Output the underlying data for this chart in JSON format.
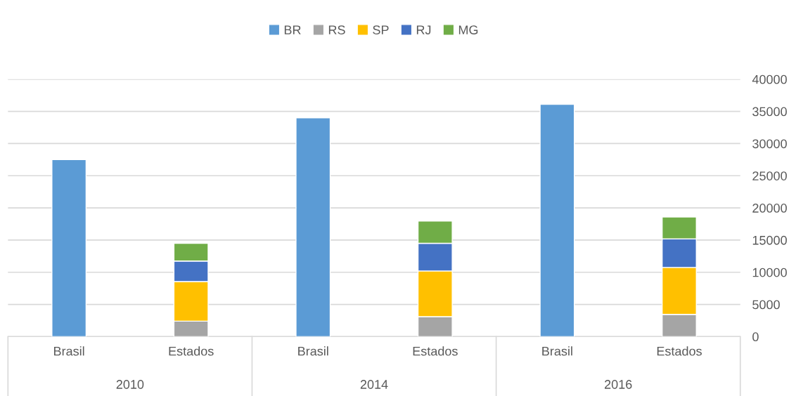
{
  "chart_data": {
    "type": "bar",
    "stacked": true,
    "categories": [
      "Brasil",
      "Estados",
      "Brasil",
      "Estados",
      "Brasil",
      "Estados"
    ],
    "series": [
      {
        "name": "BR",
        "color": "#5b9bd5",
        "values": [
          27500,
          null,
          34000,
          null,
          36100,
          null
        ]
      },
      {
        "name": "RS",
        "color": "#a5a5a5",
        "values": [
          null,
          2400,
          null,
          3100,
          null,
          3450
        ]
      },
      {
        "name": "SP",
        "color": "#ffc000",
        "values": [
          null,
          6150,
          null,
          7100,
          null,
          7300
        ]
      },
      {
        "name": "RJ",
        "color": "#4472c4",
        "values": [
          null,
          3200,
          null,
          4300,
          null,
          4450
        ]
      },
      {
        "name": "MG",
        "color": "#70ad47",
        "values": [
          null,
          2750,
          null,
          3450,
          null,
          3400
        ]
      }
    ],
    "annotations": [
      "2010",
      "2014",
      "2016"
    ],
    "ylim": [
      0,
      40000
    ],
    "yticks": [
      0,
      5000,
      10000,
      15000,
      20000,
      25000,
      30000,
      35000,
      40000
    ],
    "grid": "y",
    "legend": "top"
  }
}
